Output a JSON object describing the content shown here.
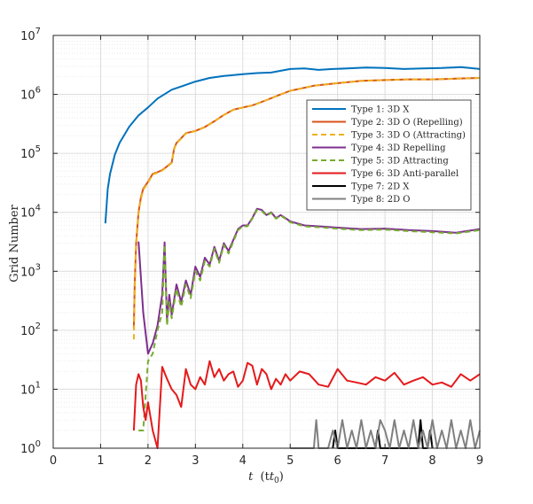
{
  "chart_data": {
    "type": "line",
    "xlabel_main": "t",
    "xlabel_unit": "(t",
    "xlabel_unit_sub": "0",
    "xlabel_unit_close": ")",
    "ylabel": "Grid Number",
    "xlim": [
      0,
      9
    ],
    "ylim": [
      1,
      10000000
    ],
    "yscale": "log",
    "grid": true,
    "legend_position": "upper-right",
    "x_ticks": [
      "0",
      "1",
      "2",
      "3",
      "4",
      "5",
      "6",
      "7",
      "8",
      "9"
    ],
    "y_ticks": [
      {
        "base": "10",
        "exp": "0"
      },
      {
        "base": "10",
        "exp": "1"
      },
      {
        "base": "10",
        "exp": "2"
      },
      {
        "base": "10",
        "exp": "3"
      },
      {
        "base": "10",
        "exp": "4"
      },
      {
        "base": "10",
        "exp": "5"
      },
      {
        "base": "10",
        "exp": "6"
      },
      {
        "base": "10",
        "exp": "7"
      }
    ],
    "series": [
      {
        "name": "Type 1: 3D X",
        "color": "#0072BD",
        "style": "solid",
        "x": [
          1.1,
          1.15,
          1.2,
          1.3,
          1.4,
          1.6,
          1.8,
          2.0,
          2.2,
          2.5,
          2.8,
          3.0,
          3.3,
          3.6,
          4.0,
          4.3,
          4.6,
          5.0,
          5.3,
          5.6,
          5.9,
          6.2,
          6.6,
          7.0,
          7.4,
          7.8,
          8.2,
          8.6,
          9.0
        ],
        "y": [
          6500,
          25000,
          45000,
          95000,
          150000,
          280000,
          440000,
          600000,
          850000,
          1200000,
          1450000,
          1650000,
          1900000,
          2050000,
          2200000,
          2300000,
          2350000,
          2700000,
          2750000,
          2600000,
          2700000,
          2750000,
          2850000,
          2800000,
          2700000,
          2750000,
          2800000,
          2900000,
          2700000
        ]
      },
      {
        "name": "Type 2: 3D O (Repelling)",
        "color": "#D95319",
        "style": "solid",
        "x": [
          1.7,
          1.72,
          1.75,
          1.8,
          1.85,
          1.9,
          2.0,
          2.1,
          2.2,
          2.3,
          2.4,
          2.5,
          2.55,
          2.6,
          2.7,
          2.8,
          3.0,
          3.2,
          3.4,
          3.6,
          3.8,
          4.0,
          4.2,
          4.5,
          4.8,
          5.0,
          5.5,
          6.0,
          6.5,
          7.0,
          7.5,
          8.0,
          8.5,
          9.0
        ],
        "y": [
          110,
          600,
          3000,
          10000,
          18000,
          25000,
          33000,
          45000,
          48000,
          52000,
          60000,
          70000,
          120000,
          150000,
          180000,
          220000,
          240000,
          280000,
          350000,
          450000,
          550000,
          600000,
          650000,
          800000,
          1000000,
          1150000,
          1400000,
          1550000,
          1700000,
          1750000,
          1800000,
          1800000,
          1850000,
          1900000
        ]
      },
      {
        "name": "Type 3: 3D O (Attracting)",
        "color": "#EDB120",
        "style": "dashed",
        "x": [
          1.7,
          1.72,
          1.75,
          1.8,
          1.85,
          1.9,
          2.0,
          2.1,
          2.2,
          2.3,
          2.4,
          2.5,
          2.55,
          2.6,
          2.7,
          2.8,
          3.0,
          3.2,
          3.4,
          3.6,
          3.8,
          4.0,
          4.2,
          4.5,
          4.8,
          5.0,
          5.5,
          6.0,
          6.5,
          7.0,
          7.5,
          8.0,
          8.5,
          9.0
        ],
        "y": [
          70,
          500,
          2800,
          9500,
          17000,
          24000,
          32000,
          44000,
          47000,
          51000,
          59000,
          69000,
          118000,
          148000,
          178000,
          218000,
          238000,
          278000,
          348000,
          448000,
          548000,
          598000,
          648000,
          798000,
          998000,
          1148000,
          1398000,
          1548000,
          1698000,
          1748000,
          1798000,
          1798000,
          1848000,
          1898000
        ]
      },
      {
        "name": "Type 4: 3D Repelling",
        "color": "#7E2F8E",
        "style": "solid",
        "x": [
          1.8,
          1.9,
          2.0,
          2.1,
          2.2,
          2.3,
          2.35,
          2.4,
          2.45,
          2.5,
          2.6,
          2.7,
          2.8,
          2.9,
          3.0,
          3.1,
          3.2,
          3.3,
          3.4,
          3.5,
          3.6,
          3.7,
          3.8,
          3.9,
          4.0,
          4.1,
          4.2,
          4.3,
          4.4,
          4.5,
          4.6,
          4.7,
          4.8,
          4.9,
          5.0,
          5.3,
          5.6,
          6.0,
          6.5,
          7.0,
          7.5,
          8.0,
          8.5,
          9.0
        ],
        "y": [
          3200,
          200,
          40,
          60,
          120,
          400,
          3100,
          150,
          400,
          180,
          600,
          300,
          700,
          400,
          1200,
          800,
          1700,
          1300,
          2600,
          1500,
          3000,
          2200,
          3400,
          5200,
          6000,
          6000,
          8000,
          11500,
          11000,
          9000,
          10000,
          8000,
          9000,
          8000,
          7000,
          6000,
          5800,
          5500,
          5200,
          5300,
          5000,
          4800,
          4500,
          5200
        ]
      },
      {
        "name": "Type 5: 3D Attracting",
        "color": "#77AC30",
        "style": "dashed",
        "x": [
          1.8,
          1.9,
          2.0,
          2.1,
          2.2,
          2.3,
          2.35,
          2.4,
          2.45,
          2.5,
          2.6,
          2.7,
          2.8,
          2.9,
          3.0,
          3.1,
          3.2,
          3.3,
          3.4,
          3.5,
          3.6,
          3.7,
          3.8,
          3.9,
          4.0,
          4.1,
          4.2,
          4.3,
          4.4,
          4.5,
          4.6,
          4.7,
          4.8,
          4.9,
          5.0,
          5.3,
          5.6,
          6.0,
          6.5,
          7.0,
          7.5,
          8.0,
          8.5,
          9.0
        ],
        "y": [
          2,
          2,
          30,
          40,
          100,
          200,
          2800,
          120,
          300,
          160,
          500,
          250,
          600,
          350,
          1000,
          700,
          1500,
          1200,
          2400,
          1400,
          2800,
          2000,
          3200,
          5000,
          5800,
          5800,
          7800,
          11000,
          10500,
          8800,
          9800,
          7800,
          8800,
          7800,
          6800,
          5800,
          5600,
          5300,
          5000,
          5100,
          4800,
          4600,
          4400,
          5000
        ]
      },
      {
        "name": "Type 6: 3D Anti-parallel",
        "color": "#E41A1C",
        "style": "solid",
        "x": [
          1.7,
          1.75,
          1.8,
          1.85,
          1.9,
          1.95,
          2.0,
          2.1,
          2.2,
          2.3,
          2.4,
          2.5,
          2.6,
          2.7,
          2.8,
          2.9,
          3.0,
          3.1,
          3.2,
          3.3,
          3.4,
          3.5,
          3.6,
          3.7,
          3.8,
          3.9,
          4.0,
          4.1,
          4.2,
          4.3,
          4.4,
          4.5,
          4.6,
          4.7,
          4.8,
          4.9,
          5.0,
          5.2,
          5.4,
          5.6,
          5.8,
          6.0,
          6.2,
          6.4,
          6.6,
          6.8,
          7.0,
          7.2,
          7.4,
          7.6,
          7.8,
          8.0,
          8.2,
          8.4,
          8.6,
          8.8,
          9.0
        ],
        "y": [
          2,
          12,
          18,
          14,
          5,
          3,
          6,
          2,
          1,
          24,
          15,
          10,
          8,
          5,
          22,
          12,
          10,
          16,
          12,
          30,
          16,
          22,
          14,
          18,
          20,
          11,
          14,
          28,
          25,
          12,
          22,
          18,
          10,
          15,
          12,
          18,
          14,
          20,
          18,
          12,
          11,
          22,
          14,
          13,
          12,
          16,
          14,
          19,
          12,
          14,
          16,
          12,
          13,
          11,
          18,
          14,
          18
        ]
      },
      {
        "name": "Type 7: 2D X",
        "color": "#000000",
        "style": "solid",
        "x": [
          5.9,
          5.95,
          6.0,
          6.8,
          6.85,
          6.9,
          7.7,
          7.75,
          7.8,
          7.9,
          7.95,
          8.0
        ],
        "y": [
          1,
          2,
          1,
          1,
          2,
          1,
          1,
          3,
          1,
          1,
          2,
          1
        ]
      },
      {
        "name": "Type 8: 2D O",
        "color": "#808080",
        "style": "solid",
        "x": [
          5.0,
          5.2,
          5.5,
          5.55,
          5.6,
          5.8,
          5.9,
          6.0,
          6.1,
          6.2,
          6.3,
          6.4,
          6.5,
          6.6,
          6.7,
          6.8,
          6.9,
          7.0,
          7.1,
          7.2,
          7.3,
          7.4,
          7.5,
          7.6,
          7.7,
          7.8,
          7.9,
          8.0,
          8.1,
          8.2,
          8.3,
          8.4,
          8.5,
          8.6,
          8.7,
          8.8,
          8.9,
          9.0
        ],
        "y": [
          1,
          1,
          1,
          3,
          1,
          1,
          2,
          1,
          3,
          1,
          2,
          1,
          3,
          1,
          2,
          1,
          3,
          2,
          1,
          3,
          1,
          2,
          1,
          3,
          1,
          2,
          1,
          3,
          1,
          2,
          1,
          3,
          1,
          2,
          1,
          3,
          1,
          2
        ]
      }
    ]
  }
}
